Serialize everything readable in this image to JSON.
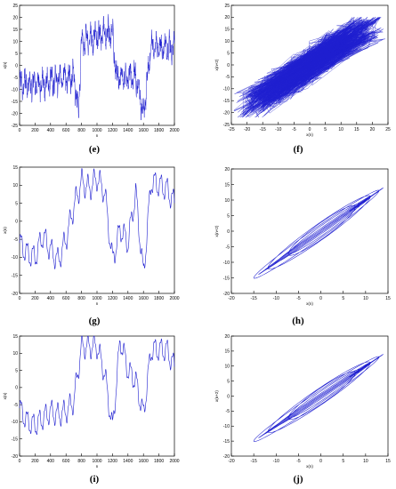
{
  "figure": {
    "series_color": "#1f1fd0",
    "panel_labels": [
      "(e)",
      "(f)",
      "(g)",
      "(h)",
      "(i)",
      "(j)"
    ]
  },
  "chart_data": [
    {
      "type": "line",
      "label": "(e)",
      "xlabel": "n",
      "ylabel": "x(n)",
      "xlim": [
        0,
        2000
      ],
      "ylim": [
        -25,
        25
      ],
      "xticks": [
        0,
        200,
        400,
        600,
        800,
        1000,
        1200,
        1400,
        1600,
        1800,
        2000
      ],
      "yticks": [
        -25,
        -20,
        -15,
        -10,
        -5,
        0,
        5,
        10,
        15,
        20,
        25
      ],
      "grid": false,
      "x": [
        0,
        200,
        400,
        600,
        700,
        760,
        800,
        1000,
        1200,
        1250,
        1300,
        1500,
        1600,
        1700,
        2000
      ],
      "y": [
        -8,
        -8,
        -7,
        -5,
        -4,
        -20,
        10,
        12,
        14,
        -5,
        -5,
        -4,
        -20,
        8,
        7
      ]
    },
    {
      "type": "scatter",
      "label": "(f)",
      "xlabel": "x(n)",
      "ylabel": "x(n+2)",
      "xlim": [
        -25,
        25
      ],
      "ylim": [
        -25,
        25
      ],
      "xticks": [
        -25,
        -20,
        -15,
        -10,
        -5,
        0,
        5,
        10,
        15,
        20,
        25
      ],
      "yticks": [
        -25,
        -20,
        -15,
        -10,
        -5,
        0,
        5,
        10,
        15,
        20,
        25
      ],
      "grid": false,
      "x": [
        -20,
        -15,
        -10,
        -5,
        0,
        5,
        10,
        15,
        20
      ],
      "y": [
        -18,
        -14,
        -9,
        -5,
        0,
        5,
        9,
        13,
        17
      ]
    },
    {
      "type": "line",
      "label": "(g)",
      "xlabel": "n",
      "ylabel": "x(n)",
      "xlim": [
        0,
        2000
      ],
      "ylim": [
        -20,
        15
      ],
      "xticks": [
        0,
        200,
        400,
        600,
        800,
        1000,
        1200,
        1400,
        1600,
        1800,
        2000
      ],
      "yticks": [
        -20,
        -15,
        -10,
        -5,
        0,
        5,
        10,
        15
      ],
      "grid": false,
      "x": [
        0,
        100,
        200,
        300,
        400,
        500,
        600,
        700,
        800,
        900,
        1000,
        1100,
        1200,
        1300,
        1400,
        1500,
        1600,
        1700,
        1800,
        1900,
        2000
      ],
      "y": [
        -6,
        -9,
        -10,
        -4,
        -8,
        -11,
        -5,
        4,
        11,
        9,
        12,
        8,
        -11,
        -2,
        -6,
        8,
        -15,
        11,
        10,
        9,
        5
      ]
    },
    {
      "type": "line",
      "label": "(h)",
      "xlabel": "x(n)",
      "ylabel": "x(n+2)",
      "xlim": [
        -20,
        15
      ],
      "ylim": [
        -20,
        20
      ],
      "xticks": [
        -20,
        -15,
        -10,
        -5,
        0,
        5,
        10,
        15
      ],
      "yticks": [
        -20,
        -15,
        -10,
        -5,
        0,
        5,
        10,
        15,
        20
      ],
      "grid": false,
      "x": [
        -15,
        -10,
        -5,
        0,
        5,
        10,
        13
      ],
      "y": [
        -15,
        -10,
        -5,
        0,
        5,
        10,
        13
      ]
    },
    {
      "type": "line",
      "label": "(i)",
      "xlabel": "n",
      "ylabel": "x(n)",
      "xlim": [
        0,
        2000
      ],
      "ylim": [
        -20,
        15
      ],
      "xticks": [
        0,
        200,
        400,
        600,
        800,
        1000,
        1200,
        1400,
        1600,
        1800,
        2000
      ],
      "yticks": [
        -20,
        -15,
        -10,
        -5,
        0,
        5,
        10,
        15
      ],
      "grid": false,
      "x": [
        0,
        100,
        200,
        300,
        400,
        500,
        600,
        700,
        800,
        900,
        1000,
        1100,
        1200,
        1300,
        1400,
        1500,
        1600,
        1700,
        1800,
        1900,
        2000
      ],
      "y": [
        -6,
        -10,
        -11,
        -9,
        -7,
        -8,
        -7,
        -4,
        12,
        12,
        12,
        4,
        -12,
        14,
        5,
        2,
        -8,
        11,
        11,
        11,
        6
      ]
    },
    {
      "type": "line",
      "label": "(j)",
      "xlabel": "x(n)",
      "ylabel": "x(n+2)",
      "xlim": [
        -20,
        15
      ],
      "ylim": [
        -20,
        20
      ],
      "xticks": [
        -20,
        -15,
        -10,
        -5,
        0,
        5,
        10,
        15
      ],
      "yticks": [
        -20,
        -15,
        -10,
        -5,
        0,
        5,
        10,
        15,
        20
      ],
      "grid": false,
      "x": [
        -15,
        -10,
        -5,
        0,
        5,
        10,
        13
      ],
      "y": [
        -15,
        -10,
        -5,
        0,
        5,
        10,
        13
      ]
    }
  ]
}
